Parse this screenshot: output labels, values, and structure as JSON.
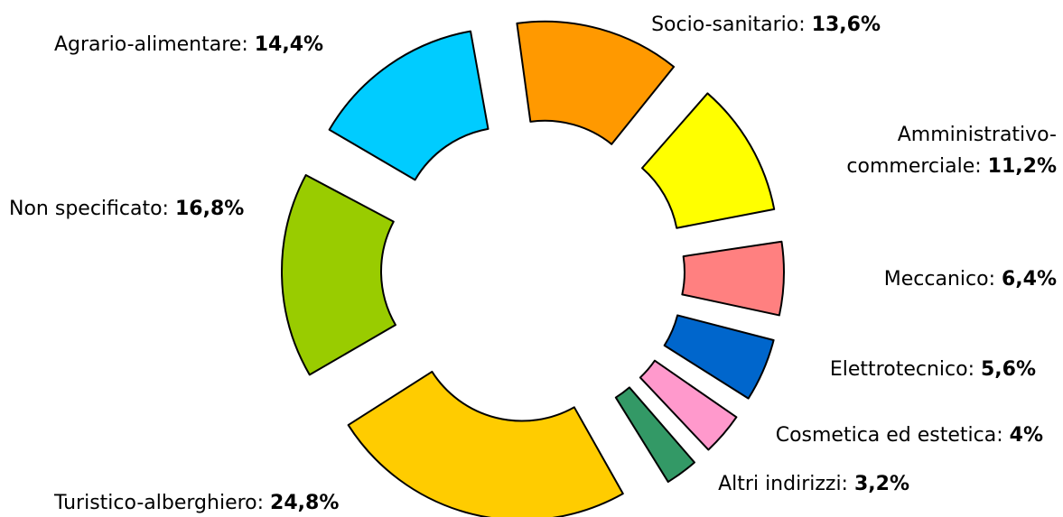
{
  "chart_data": {
    "type": "donut",
    "categories": [
      "Socio-sanitario:",
      "Amministrativo-commerciale:",
      "Meccanico:",
      "Elettrotecnico:",
      "Cosmetica ed estetica:",
      "Altri indirizzi:",
      "Turistico-alberghiero:",
      "Non specificato:",
      "Agrario-alimentare:"
    ],
    "values": [
      13.6,
      11.2,
      6.4,
      5.6,
      4,
      3.2,
      24.8,
      16.8,
      14.4
    ],
    "value_labels": [
      "13,6%",
      "11,2%",
      "6,4%",
      "5,6%",
      "4%",
      "3,2%",
      "24,8%",
      "16,8%",
      "14,4%"
    ],
    "colors": [
      "#ff9900",
      "#ffff00",
      "#ff8080",
      "#0066cc",
      "#ff99cc",
      "#339966",
      "#ffcc00",
      "#99cc00",
      "#00ccff"
    ]
  }
}
